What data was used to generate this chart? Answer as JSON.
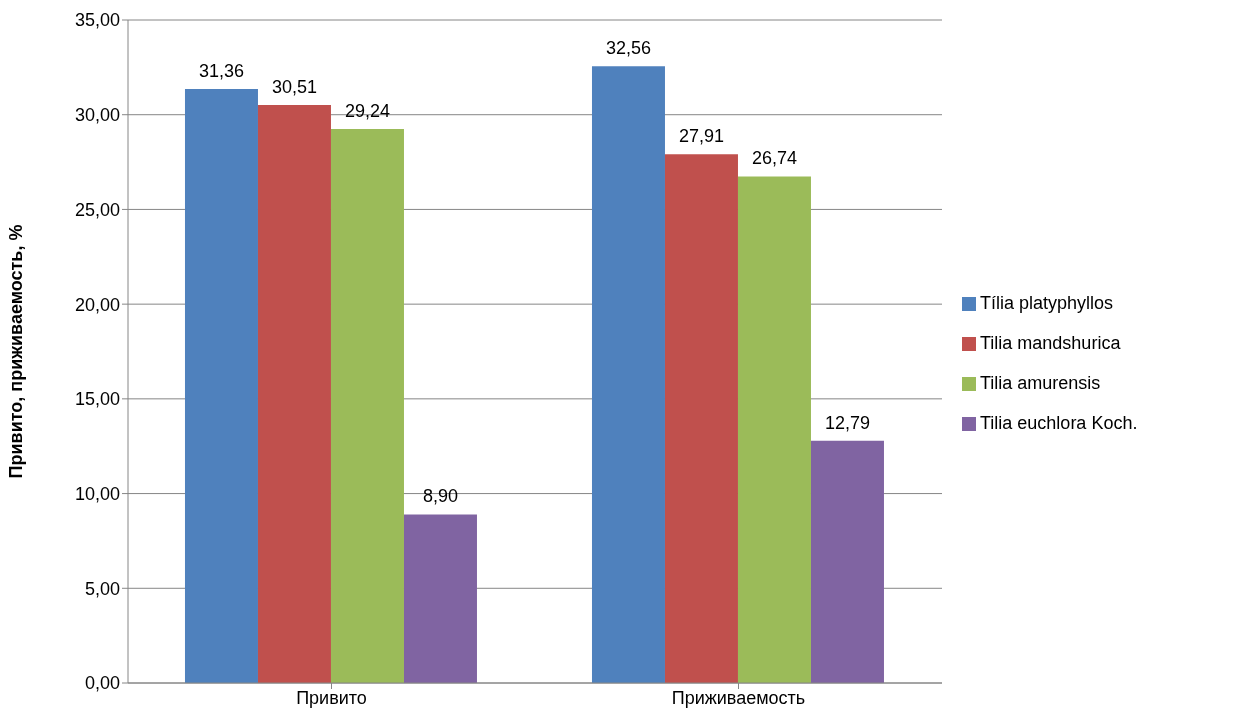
{
  "chart_data": {
    "type": "bar",
    "ylabel": "Привито, приживаемость, %",
    "categories": [
      "Привито",
      "Приживаемость"
    ],
    "series": [
      {
        "name": "Tília platyphyllos",
        "color": "#4f81bd",
        "values": [
          31.36,
          32.56
        ],
        "value_labels": [
          "31,36",
          "32,56"
        ]
      },
      {
        "name": "Tilia mandshurica",
        "color": "#c0504d",
        "values": [
          30.51,
          27.91
        ],
        "value_labels": [
          "30,51",
          "27,91"
        ]
      },
      {
        "name": "Tilia amurensis",
        "color": "#9bbb59",
        "values": [
          29.24,
          26.74
        ],
        "value_labels": [
          "29,24",
          "26,74"
        ]
      },
      {
        "name": "Tilia euchlora Koch.",
        "color": "#8064a2",
        "values": [
          8.9,
          12.79
        ],
        "value_labels": [
          "8,90",
          "12,79"
        ]
      }
    ],
    "ylim": [
      0,
      35
    ],
    "yticks": [
      {
        "value": 0,
        "label": "0,00"
      },
      {
        "value": 5,
        "label": "5,00"
      },
      {
        "value": 10,
        "label": "10,00"
      },
      {
        "value": 15,
        "label": "15,00"
      },
      {
        "value": 20,
        "label": "20,00"
      },
      {
        "value": 25,
        "label": "25,00"
      },
      {
        "value": 30,
        "label": "30,00"
      },
      {
        "value": 35,
        "label": "35,00"
      }
    ],
    "grid": "y",
    "legend": "right"
  }
}
